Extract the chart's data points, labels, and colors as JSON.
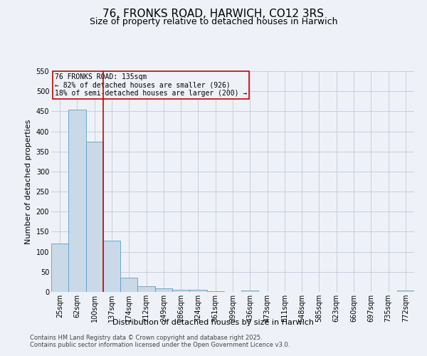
{
  "title": "76, FRONKS ROAD, HARWICH, CO12 3RS",
  "subtitle": "Size of property relative to detached houses in Harwich",
  "xlabel": "Distribution of detached houses by size in Harwich",
  "ylabel": "Number of detached properties",
  "categories": [
    "25sqm",
    "62sqm",
    "100sqm",
    "137sqm",
    "174sqm",
    "212sqm",
    "249sqm",
    "286sqm",
    "324sqm",
    "361sqm",
    "399sqm",
    "436sqm",
    "473sqm",
    "511sqm",
    "548sqm",
    "585sqm",
    "623sqm",
    "660sqm",
    "697sqm",
    "735sqm",
    "772sqm"
  ],
  "values": [
    120,
    455,
    375,
    128,
    35,
    14,
    9,
    5,
    6,
    1,
    0,
    3,
    0,
    0,
    0,
    0,
    0,
    0,
    0,
    0,
    4
  ],
  "bar_color": "#c9d9e8",
  "bar_edgecolor": "#5a9ec9",
  "vline_pos": 2.5,
  "vline_color": "#cc0000",
  "annotation_text": "76 FRONKS ROAD: 135sqm\n← 82% of detached houses are smaller (926)\n18% of semi-detached houses are larger (200) →",
  "annotation_box_color": "#cc0000",
  "ylim": [
    0,
    550
  ],
  "yticks": [
    0,
    50,
    100,
    150,
    200,
    250,
    300,
    350,
    400,
    450,
    500,
    550
  ],
  "grid_color": "#c0c8d8",
  "background_color": "#eef2f8",
  "footer_line1": "Contains HM Land Registry data © Crown copyright and database right 2025.",
  "footer_line2": "Contains public sector information licensed under the Open Government Licence v3.0.",
  "title_fontsize": 11,
  "subtitle_fontsize": 9,
  "axis_label_fontsize": 8,
  "tick_fontsize": 7,
  "annotation_fontsize": 7,
  "footer_fontsize": 6
}
